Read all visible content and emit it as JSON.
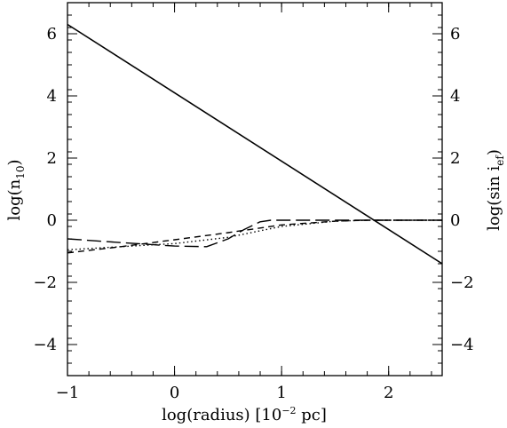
{
  "chart_data": {
    "type": "line",
    "xlim": [
      -1,
      2.5
    ],
    "ylim": [
      -5,
      7
    ],
    "x_ticks": [
      -1,
      0,
      1,
      2
    ],
    "x_tick_labels": [
      "−1",
      "0",
      "1",
      "2"
    ],
    "y_ticks": [
      -4,
      -2,
      0,
      2,
      4,
      6
    ],
    "y_tick_labels": [
      "−4",
      "−2",
      "0",
      "2",
      "4",
      "6"
    ],
    "x_minor_step": 0.2,
    "y_minor_step": 0.4,
    "xlabel": {
      "pre": "log(radius) [10",
      "sup": "−2",
      "post": " pc]"
    },
    "ylabel_left": {
      "pre": "log(n",
      "sub": "10",
      "post": ")"
    },
    "ylabel_right": {
      "pre": "log(sin i",
      "sub": "ef",
      "post": ")"
    },
    "grid": false,
    "series": [
      {
        "style": "solid",
        "x": [
          -1,
          2.5
        ],
        "y": [
          6.3,
          -1.4
        ]
      },
      {
        "style": "long-dash",
        "x": [
          -1,
          -0.5,
          0,
          0.3,
          0.5,
          0.65,
          0.8,
          0.9,
          1.2,
          1.8,
          2.5
        ],
        "y": [
          -0.6,
          -0.72,
          -0.83,
          -0.85,
          -0.6,
          -0.3,
          -0.05,
          0,
          0,
          0,
          0
        ]
      },
      {
        "style": "short-dash",
        "x": [
          -1,
          -0.5,
          0,
          0.5,
          1,
          1.5,
          1.8,
          2.5
        ],
        "y": [
          -1.05,
          -0.85,
          -0.63,
          -0.4,
          -0.15,
          -0.03,
          0,
          0
        ]
      },
      {
        "style": "dotted",
        "x": [
          -1,
          -0.5,
          0,
          0.5,
          1,
          1.5,
          1.8,
          2.5
        ],
        "y": [
          -0.95,
          -0.85,
          -0.75,
          -0.55,
          -0.2,
          -0.03,
          0,
          0
        ]
      }
    ]
  }
}
